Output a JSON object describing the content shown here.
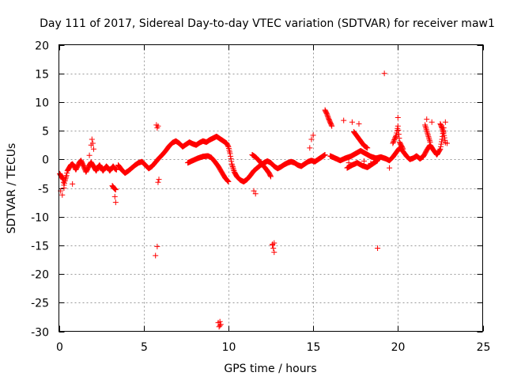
{
  "chart_data": {
    "type": "scatter",
    "title": "Day 111 of 2017, Sidereal Day-to-day VTEC variation (SDTVAR) for receiver maw1",
    "xlabel": "GPS time / hours",
    "ylabel": "SDTVAR / TECUs",
    "xlim": [
      0,
      25
    ],
    "ylim": [
      -30,
      20
    ],
    "xticks": [
      0,
      5,
      10,
      15,
      20,
      25
    ],
    "yticks": [
      -30,
      -25,
      -20,
      -15,
      -10,
      -5,
      0,
      5,
      10,
      15,
      20
    ],
    "grid": true,
    "marker": "plus",
    "series": [
      {
        "name": "SDTVAR",
        "color": "#ff0000",
        "segments": [
          [
            [
              0.05,
              -2.5
            ],
            [
              0.15,
              -3.0
            ],
            [
              0.25,
              -3.5
            ],
            [
              0.3,
              -4.5
            ],
            [
              0.35,
              -3.8
            ],
            [
              0.45,
              -2.8
            ],
            [
              0.5,
              -2.0
            ],
            [
              0.6,
              -1.5
            ],
            [
              0.7,
              -1.0
            ],
            [
              0.8,
              -0.8
            ],
            [
              0.9,
              -1.2
            ],
            [
              1.0,
              -1.8
            ],
            [
              1.1,
              -1.2
            ],
            [
              1.2,
              -0.6
            ],
            [
              1.3,
              -0.2
            ],
            [
              1.4,
              -0.8
            ],
            [
              1.5,
              -1.5
            ],
            [
              1.6,
              -2.2
            ],
            [
              1.7,
              -1.6
            ],
            [
              1.8,
              -1.0
            ],
            [
              1.9,
              -0.5
            ],
            [
              2.0,
              -1.0
            ],
            [
              2.1,
              -1.5
            ],
            [
              2.2,
              -2.0
            ],
            [
              2.3,
              -1.4
            ],
            [
              2.4,
              -1.0
            ],
            [
              2.5,
              -1.5
            ],
            [
              2.6,
              -2.0
            ],
            [
              2.7,
              -1.6
            ],
            [
              2.8,
              -1.2
            ],
            [
              2.9,
              -1.5
            ],
            [
              3.0,
              -2.0
            ],
            [
              3.1,
              -1.6
            ],
            [
              3.2,
              -1.2
            ],
            [
              3.3,
              -1.6
            ],
            [
              3.4,
              -1.8
            ]
          ],
          [
            [
              3.15,
              -4.6
            ],
            [
              3.25,
              -5.0
            ],
            [
              3.35,
              -5.3
            ]
          ],
          [
            [
              3.5,
              -1.0
            ],
            [
              3.7,
              -1.8
            ],
            [
              3.9,
              -2.4
            ],
            [
              4.1,
              -2.0
            ],
            [
              4.3,
              -1.5
            ],
            [
              4.5,
              -1.0
            ],
            [
              4.7,
              -0.6
            ],
            [
              4.9,
              -0.4
            ],
            [
              5.1,
              -1.0
            ],
            [
              5.3,
              -1.6
            ],
            [
              5.5,
              -1.2
            ],
            [
              5.7,
              -0.5
            ],
            [
              5.9,
              0.2
            ],
            [
              6.1,
              0.8
            ],
            [
              6.3,
              1.5
            ],
            [
              6.5,
              2.3
            ],
            [
              6.7,
              2.9
            ],
            [
              6.9,
              3.2
            ],
            [
              7.1,
              2.8
            ],
            [
              7.3,
              2.2
            ],
            [
              7.5,
              2.6
            ],
            [
              7.7,
              3.0
            ],
            [
              7.9,
              2.7
            ],
            [
              8.1,
              2.5
            ],
            [
              8.3,
              2.9
            ],
            [
              8.5,
              3.2
            ],
            [
              8.7,
              3.0
            ],
            [
              8.9,
              3.4
            ],
            [
              9.1,
              3.7
            ],
            [
              9.3,
              4.0
            ],
            [
              9.5,
              3.6
            ],
            [
              9.7,
              3.2
            ],
            [
              9.9,
              2.8
            ],
            [
              10.0,
              2.2
            ],
            [
              10.1,
              1.0
            ],
            [
              10.2,
              -0.8
            ],
            [
              10.35,
              -2.2
            ],
            [
              10.5,
              -3.0
            ],
            [
              10.7,
              -3.6
            ],
            [
              10.9,
              -3.9
            ],
            [
              11.1,
              -3.5
            ],
            [
              11.3,
              -2.8
            ],
            [
              11.5,
              -2.0
            ],
            [
              11.7,
              -1.5
            ],
            [
              11.9,
              -1.0
            ],
            [
              12.1,
              -0.6
            ],
            [
              12.3,
              -0.3
            ],
            [
              12.5,
              -0.6
            ],
            [
              12.7,
              -1.2
            ],
            [
              12.9,
              -1.6
            ],
            [
              13.1,
              -1.3
            ],
            [
              13.3,
              -0.9
            ],
            [
              13.5,
              -0.6
            ],
            [
              13.7,
              -0.4
            ],
            [
              13.9,
              -0.6
            ],
            [
              14.1,
              -1.0
            ],
            [
              14.3,
              -1.2
            ],
            [
              14.5,
              -0.8
            ],
            [
              14.7,
              -0.4
            ],
            [
              14.9,
              -0.2
            ],
            [
              15.1,
              -0.4
            ],
            [
              15.3,
              0.0
            ],
            [
              15.5,
              0.4
            ],
            [
              15.7,
              0.8
            ]
          ],
          [
            [
              7.6,
              -0.6
            ],
            [
              7.9,
              -0.2
            ],
            [
              8.2,
              0.2
            ],
            [
              8.5,
              0.5
            ],
            [
              8.8,
              0.6
            ],
            [
              9.0,
              0.3
            ],
            [
              9.2,
              -0.4
            ],
            [
              9.4,
              -1.2
            ],
            [
              9.6,
              -2.2
            ],
            [
              9.8,
              -3.2
            ],
            [
              10.0,
              -3.9
            ]
          ],
          [
            [
              11.4,
              0.8
            ],
            [
              11.6,
              0.4
            ],
            [
              11.8,
              -0.2
            ],
            [
              12.0,
              -0.9
            ],
            [
              12.2,
              -1.6
            ],
            [
              12.4,
              -2.4
            ],
            [
              12.5,
              -3.0
            ]
          ],
          [
            [
              15.7,
              8.6
            ],
            [
              15.8,
              8.0
            ],
            [
              15.9,
              7.2
            ],
            [
              16.0,
              6.5
            ],
            [
              16.1,
              5.8
            ]
          ],
          [
            [
              16.0,
              0.6
            ],
            [
              16.3,
              0.2
            ],
            [
              16.6,
              -0.2
            ],
            [
              16.9,
              0.2
            ],
            [
              17.2,
              0.5
            ],
            [
              17.5,
              1.0
            ],
            [
              17.8,
              1.5
            ],
            [
              18.1,
              1.0
            ],
            [
              18.4,
              0.5
            ],
            [
              18.7,
              0.2
            ],
            [
              19.0,
              0.4
            ],
            [
              19.3,
              0.1
            ],
            [
              19.5,
              -0.2
            ],
            [
              19.7,
              0.4
            ],
            [
              19.9,
              1.2
            ],
            [
              20.1,
              2.0
            ],
            [
              20.3,
              1.4
            ],
            [
              20.5,
              0.6
            ],
            [
              20.7,
              0.0
            ],
            [
              20.9,
              0.2
            ],
            [
              21.1,
              0.6
            ],
            [
              21.3,
              0.1
            ],
            [
              21.5,
              0.5
            ],
            [
              21.7,
              1.6
            ],
            [
              21.9,
              2.5
            ],
            [
              22.1,
              1.6
            ],
            [
              22.3,
              0.8
            ],
            [
              22.5,
              1.8
            ],
            [
              22.6,
              3.5
            ],
            [
              22.7,
              5.5
            ]
          ],
          [
            [
              17.0,
              -1.5
            ],
            [
              17.3,
              -1.0
            ],
            [
              17.6,
              -0.6
            ],
            [
              17.9,
              -1.1
            ],
            [
              18.2,
              -1.4
            ],
            [
              18.5,
              -0.8
            ],
            [
              18.8,
              -0.2
            ]
          ],
          [
            [
              17.4,
              4.8
            ],
            [
              17.6,
              4.0
            ],
            [
              17.8,
              3.2
            ],
            [
              18.0,
              2.4
            ],
            [
              18.2,
              2.0
            ]
          ],
          [
            [
              19.7,
              2.8
            ],
            [
              19.9,
              4.2
            ],
            [
              20.0,
              5.8
            ],
            [
              20.1,
              3.0
            ],
            [
              20.3,
              1.8
            ]
          ],
          [
            [
              21.6,
              6.0
            ],
            [
              21.7,
              5.0
            ],
            [
              21.8,
              4.0
            ],
            [
              21.9,
              3.0
            ]
          ],
          [
            [
              22.5,
              6.2
            ],
            [
              22.6,
              5.5
            ],
            [
              22.7,
              4.6
            ],
            [
              22.8,
              2.9
            ]
          ]
        ],
        "points": [
          [
            0.1,
            -5.5
          ],
          [
            0.2,
            -6.2
          ],
          [
            0.3,
            -5.0
          ],
          [
            0.8,
            -4.3
          ],
          [
            1.8,
            0.7
          ],
          [
            1.9,
            2.5
          ],
          [
            1.95,
            3.5
          ],
          [
            2.0,
            2.8
          ],
          [
            2.05,
            1.8
          ],
          [
            3.3,
            -6.5
          ],
          [
            3.35,
            -7.5
          ],
          [
            5.7,
            -16.8
          ],
          [
            5.8,
            -15.2
          ],
          [
            5.75,
            6.0
          ],
          [
            5.8,
            5.5
          ],
          [
            5.85,
            5.8
          ],
          [
            5.9,
            -3.5
          ],
          [
            5.85,
            -4.0
          ],
          [
            9.4,
            -28.5
          ],
          [
            9.5,
            -29.0
          ],
          [
            9.55,
            -28.8
          ],
          [
            9.45,
            -29.2
          ],
          [
            9.5,
            -28.3
          ],
          [
            11.5,
            -5.5
          ],
          [
            11.6,
            -6.0
          ],
          [
            12.6,
            -14.8
          ],
          [
            12.65,
            -15.5
          ],
          [
            12.7,
            -16.2
          ],
          [
            12.6,
            -15.0
          ],
          [
            12.7,
            -14.6
          ],
          [
            14.8,
            2.0
          ],
          [
            14.9,
            3.5
          ],
          [
            15.0,
            4.2
          ],
          [
            16.8,
            6.8
          ],
          [
            17.1,
            -0.6
          ],
          [
            17.3,
            6.5
          ],
          [
            17.7,
            6.2
          ],
          [
            18.8,
            -15.5
          ],
          [
            19.2,
            15.0
          ],
          [
            19.5,
            -1.5
          ],
          [
            20.0,
            7.3
          ],
          [
            21.7,
            7.0
          ],
          [
            22.0,
            6.5
          ],
          [
            22.8,
            6.5
          ],
          [
            22.9,
            2.8
          ],
          [
            18.4,
            -0.7
          ],
          [
            18.0,
            -0.3
          ]
        ]
      }
    ]
  }
}
